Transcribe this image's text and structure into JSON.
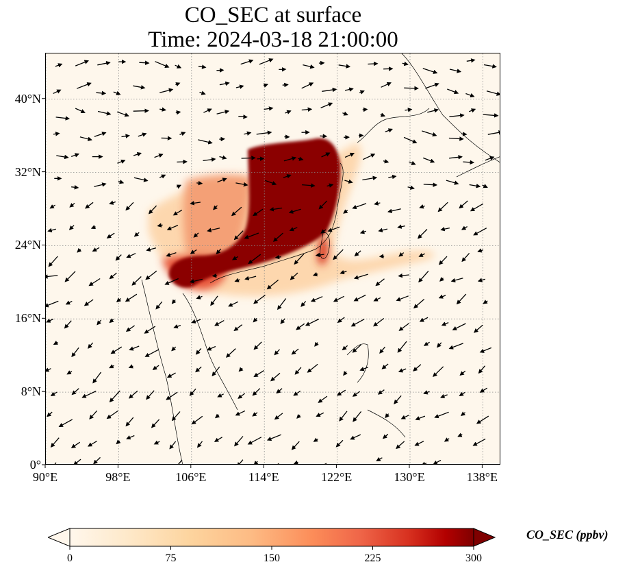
{
  "title": {
    "line1": "CO_SEC at surface",
    "line2": "Time: 2024-03-18 21:00:00"
  },
  "map": {
    "extent": {
      "lon_min": 90,
      "lon_max": 140,
      "lat_min": 0,
      "lat_max": 45
    },
    "x_ticks": [
      {
        "lon": 90,
        "label": "90°E"
      },
      {
        "lon": 98,
        "label": "98°E"
      },
      {
        "lon": 106,
        "label": "106°E"
      },
      {
        "lon": 114,
        "label": "114°E"
      },
      {
        "lon": 122,
        "label": "122°E"
      },
      {
        "lon": 130,
        "label": "130°E"
      },
      {
        "lon": 138,
        "label": "138°E"
      }
    ],
    "y_ticks": [
      {
        "lat": 0,
        "label": "0°"
      },
      {
        "lat": 8,
        "label": "8°N"
      },
      {
        "lat": 16,
        "label": "16°N"
      },
      {
        "lat": 24,
        "label": "24°N"
      },
      {
        "lat": 32,
        "label": "32°N"
      },
      {
        "lat": 40,
        "label": "40°N"
      }
    ],
    "gridlines": true,
    "background_color": "#fef7ec",
    "high_concentration_color": "#7f0000"
  },
  "colorbar": {
    "title": "CO_SEC (ppbv)",
    "min": 0,
    "max": 300,
    "extend": "both",
    "colormap": "OrRd",
    "tick_labels": [
      "0",
      "75",
      "150",
      "225",
      "300"
    ],
    "tick_values": [
      0,
      75,
      150,
      225,
      300
    ]
  }
}
